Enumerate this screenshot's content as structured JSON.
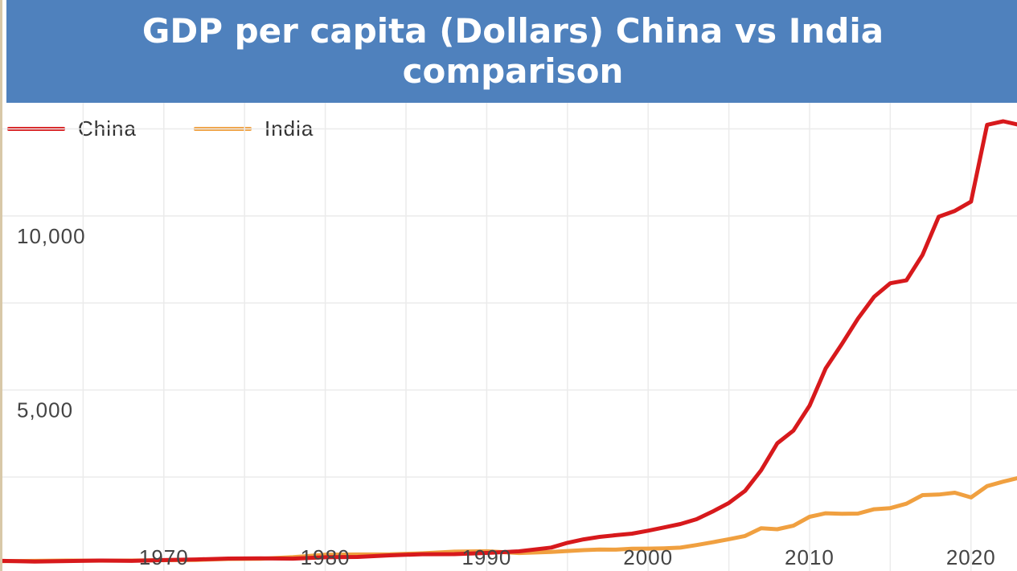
{
  "title": "GDP per capita (Dollars) China vs India comparison",
  "colors": {
    "header_bg": "#4f81bd",
    "china": "#d7191c",
    "india": "#f0a040",
    "grid": "#ebebeb"
  },
  "legend": [
    {
      "label": "China",
      "color": "#d7191c"
    },
    {
      "label": "India",
      "color": "#f0a040"
    }
  ],
  "chart_data": {
    "type": "line",
    "title": "GDP per capita (Dollars) China vs India comparison",
    "xlabel": "",
    "ylabel": "",
    "xlim": [
      1960,
      2023
    ],
    "ylim": [
      -200,
      13250
    ],
    "x_ticks": [
      1970,
      1980,
      1990,
      2000,
      2010,
      2020
    ],
    "y_ticks": [
      {
        "value": 5000,
        "label": "5,000"
      },
      {
        "value": 10000,
        "label": "10,000"
      }
    ],
    "grid": true,
    "legend_position": "top-left",
    "x": [
      1960,
      1962,
      1964,
      1966,
      1968,
      1970,
      1972,
      1974,
      1976,
      1978,
      1980,
      1982,
      1984,
      1986,
      1988,
      1990,
      1992,
      1994,
      1995,
      1996,
      1997,
      1998,
      1999,
      2000,
      2001,
      2002,
      2003,
      2004,
      2005,
      2006,
      2007,
      2008,
      2009,
      2010,
      2011,
      2012,
      2013,
      2014,
      2015,
      2016,
      2017,
      2018,
      2019,
      2020,
      2021,
      2022,
      2023
    ],
    "series": [
      {
        "name": "China",
        "color": "#d7191c",
        "values": [
          90,
          70,
          85,
          100,
          90,
          113,
          132,
          157,
          165,
          156,
          195,
          203,
          251,
          282,
          284,
          318,
          366,
          473,
          609,
          709,
          781,
          828,
          873,
          959,
          1053,
          1149,
          1289,
          1509,
          1753,
          2099,
          2694,
          3468,
          3832,
          4550,
          5618,
          6317,
          7051,
          7679,
          8067,
          8148,
          8880,
          9977,
          10144,
          10409,
          12618,
          12720,
          12614
        ]
      },
      {
        "name": "India",
        "color": "#f0a040",
        "values": [
          82,
          90,
          101,
          98,
          100,
          112,
          119,
          145,
          154,
          196,
          267,
          276,
          278,
          307,
          355,
          368,
          317,
          346,
          374,
          400,
          415,
          413,
          442,
          443,
          452,
          471,
          546,
          627,
          714,
          806,
          1028,
          999,
          1102,
          1358,
          1458,
          1444,
          1450,
          1574,
          1606,
          1733,
          1981,
          1996,
          2050,
          1913,
          2238,
          2367,
          2480
        ]
      }
    ]
  }
}
